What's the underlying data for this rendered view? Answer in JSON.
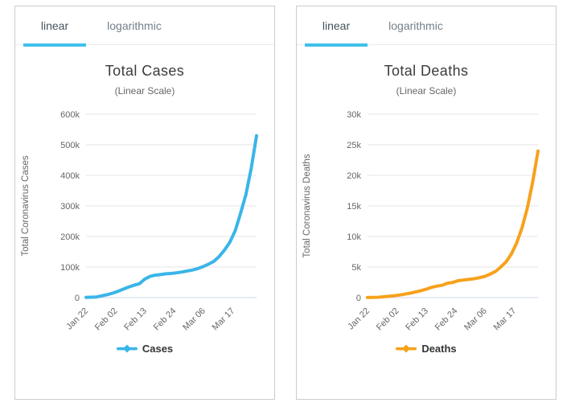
{
  "colors": {
    "accent_tab_underline": "#40c0ea",
    "cases_line": "#3ab5e8",
    "deaths_line": "#f7a11c",
    "gridline": "#e6e6e6",
    "axis_line": "#ccd6eb",
    "panel_border": "#cccccc",
    "tick_text": "#666666"
  },
  "chart_data": [
    {
      "type": "line",
      "name": "cases",
      "tabs": [
        {
          "label": "linear",
          "active": true
        },
        {
          "label": "logarithmic",
          "active": false
        }
      ],
      "title": "Total Cases",
      "subtitle": "(Linear Scale)",
      "ylabel": "Total Coronavirus Cases",
      "legend": "Cases",
      "legend_position": "bottom",
      "grid": "horizontal",
      "color": "#3ab5e8",
      "ylim": [
        0,
        600000
      ],
      "ytick_values": [
        0,
        100000,
        200000,
        300000,
        400000,
        500000,
        600000
      ],
      "ytick_labels": [
        "0",
        "100k",
        "200k",
        "300k",
        "400k",
        "500k",
        "600k"
      ],
      "xtick_labels": [
        "Jan 22",
        "Feb 02",
        "Feb 13",
        "Feb 24",
        "Mar 06",
        "Mar 17"
      ],
      "xtick_days": [
        0,
        11,
        22,
        33,
        44,
        55
      ],
      "total_days": 64,
      "dates": [
        "Jan 22",
        "Jan 24",
        "Jan 26",
        "Jan 28",
        "Jan 30",
        "Feb 01",
        "Feb 03",
        "Feb 05",
        "Feb 07",
        "Feb 09",
        "Feb 11",
        "Feb 13",
        "Feb 15",
        "Feb 17",
        "Feb 19",
        "Feb 21",
        "Feb 23",
        "Feb 25",
        "Feb 27",
        "Feb 29",
        "Mar 02",
        "Mar 04",
        "Mar 06",
        "Mar 08",
        "Mar 10",
        "Mar 12",
        "Mar 14",
        "Mar 16",
        "Mar 18",
        "Mar 20",
        "Mar 22",
        "Mar 24",
        "Mar 26"
      ],
      "values": [
        580,
        1438,
        2118,
        5997,
        9776,
        14557,
        20630,
        27636,
        34391,
        40150,
        45170,
        60368,
        69197,
        73332,
        75184,
        77794,
        78966,
        80995,
        83652,
        87137,
        90306,
        95120,
        101583,
        109577,
        118592,
        134509,
        156100,
        181546,
        218822,
        275597,
        337469,
        422915,
        529591
      ]
    },
    {
      "type": "line",
      "name": "deaths",
      "tabs": [
        {
          "label": "linear",
          "active": true
        },
        {
          "label": "logarithmic",
          "active": false
        }
      ],
      "title": "Total Deaths",
      "subtitle": "(Linear Scale)",
      "ylabel": "Total Coronavirus Deaths",
      "legend": "Deaths",
      "legend_position": "bottom",
      "grid": "horizontal",
      "color": "#f7a11c",
      "ylim": [
        0,
        30000
      ],
      "ytick_values": [
        0,
        5000,
        10000,
        15000,
        20000,
        25000,
        30000
      ],
      "ytick_labels": [
        "0",
        "5k",
        "10k",
        "15k",
        "20k",
        "25k",
        "30k"
      ],
      "xtick_labels": [
        "Jan 22",
        "Feb 02",
        "Feb 13",
        "Feb 24",
        "Mar 06",
        "Mar 17"
      ],
      "xtick_days": [
        0,
        11,
        22,
        33,
        44,
        55
      ],
      "total_days": 64,
      "dates": [
        "Jan 22",
        "Jan 24",
        "Jan 26",
        "Jan 28",
        "Jan 30",
        "Feb 01",
        "Feb 03",
        "Feb 05",
        "Feb 07",
        "Feb 09",
        "Feb 11",
        "Feb 13",
        "Feb 15",
        "Feb 17",
        "Feb 19",
        "Feb 21",
        "Feb 23",
        "Feb 25",
        "Feb 27",
        "Feb 29",
        "Mar 02",
        "Mar 04",
        "Mar 06",
        "Mar 08",
        "Mar 10",
        "Mar 12",
        "Mar 14",
        "Mar 16",
        "Mar 18",
        "Mar 20",
        "Mar 22",
        "Mar 24",
        "Mar 26"
      ],
      "values": [
        17,
        41,
        56,
        132,
        213,
        305,
        426,
        563,
        724,
        910,
        1115,
        1369,
        1669,
        1873,
        2009,
        2360,
        2469,
        2763,
        2867,
        2977,
        3085,
        3254,
        3460,
        3828,
        4262,
        4981,
        5839,
        7126,
        8951,
        11402,
        14687,
        18915,
        23970
      ]
    }
  ]
}
